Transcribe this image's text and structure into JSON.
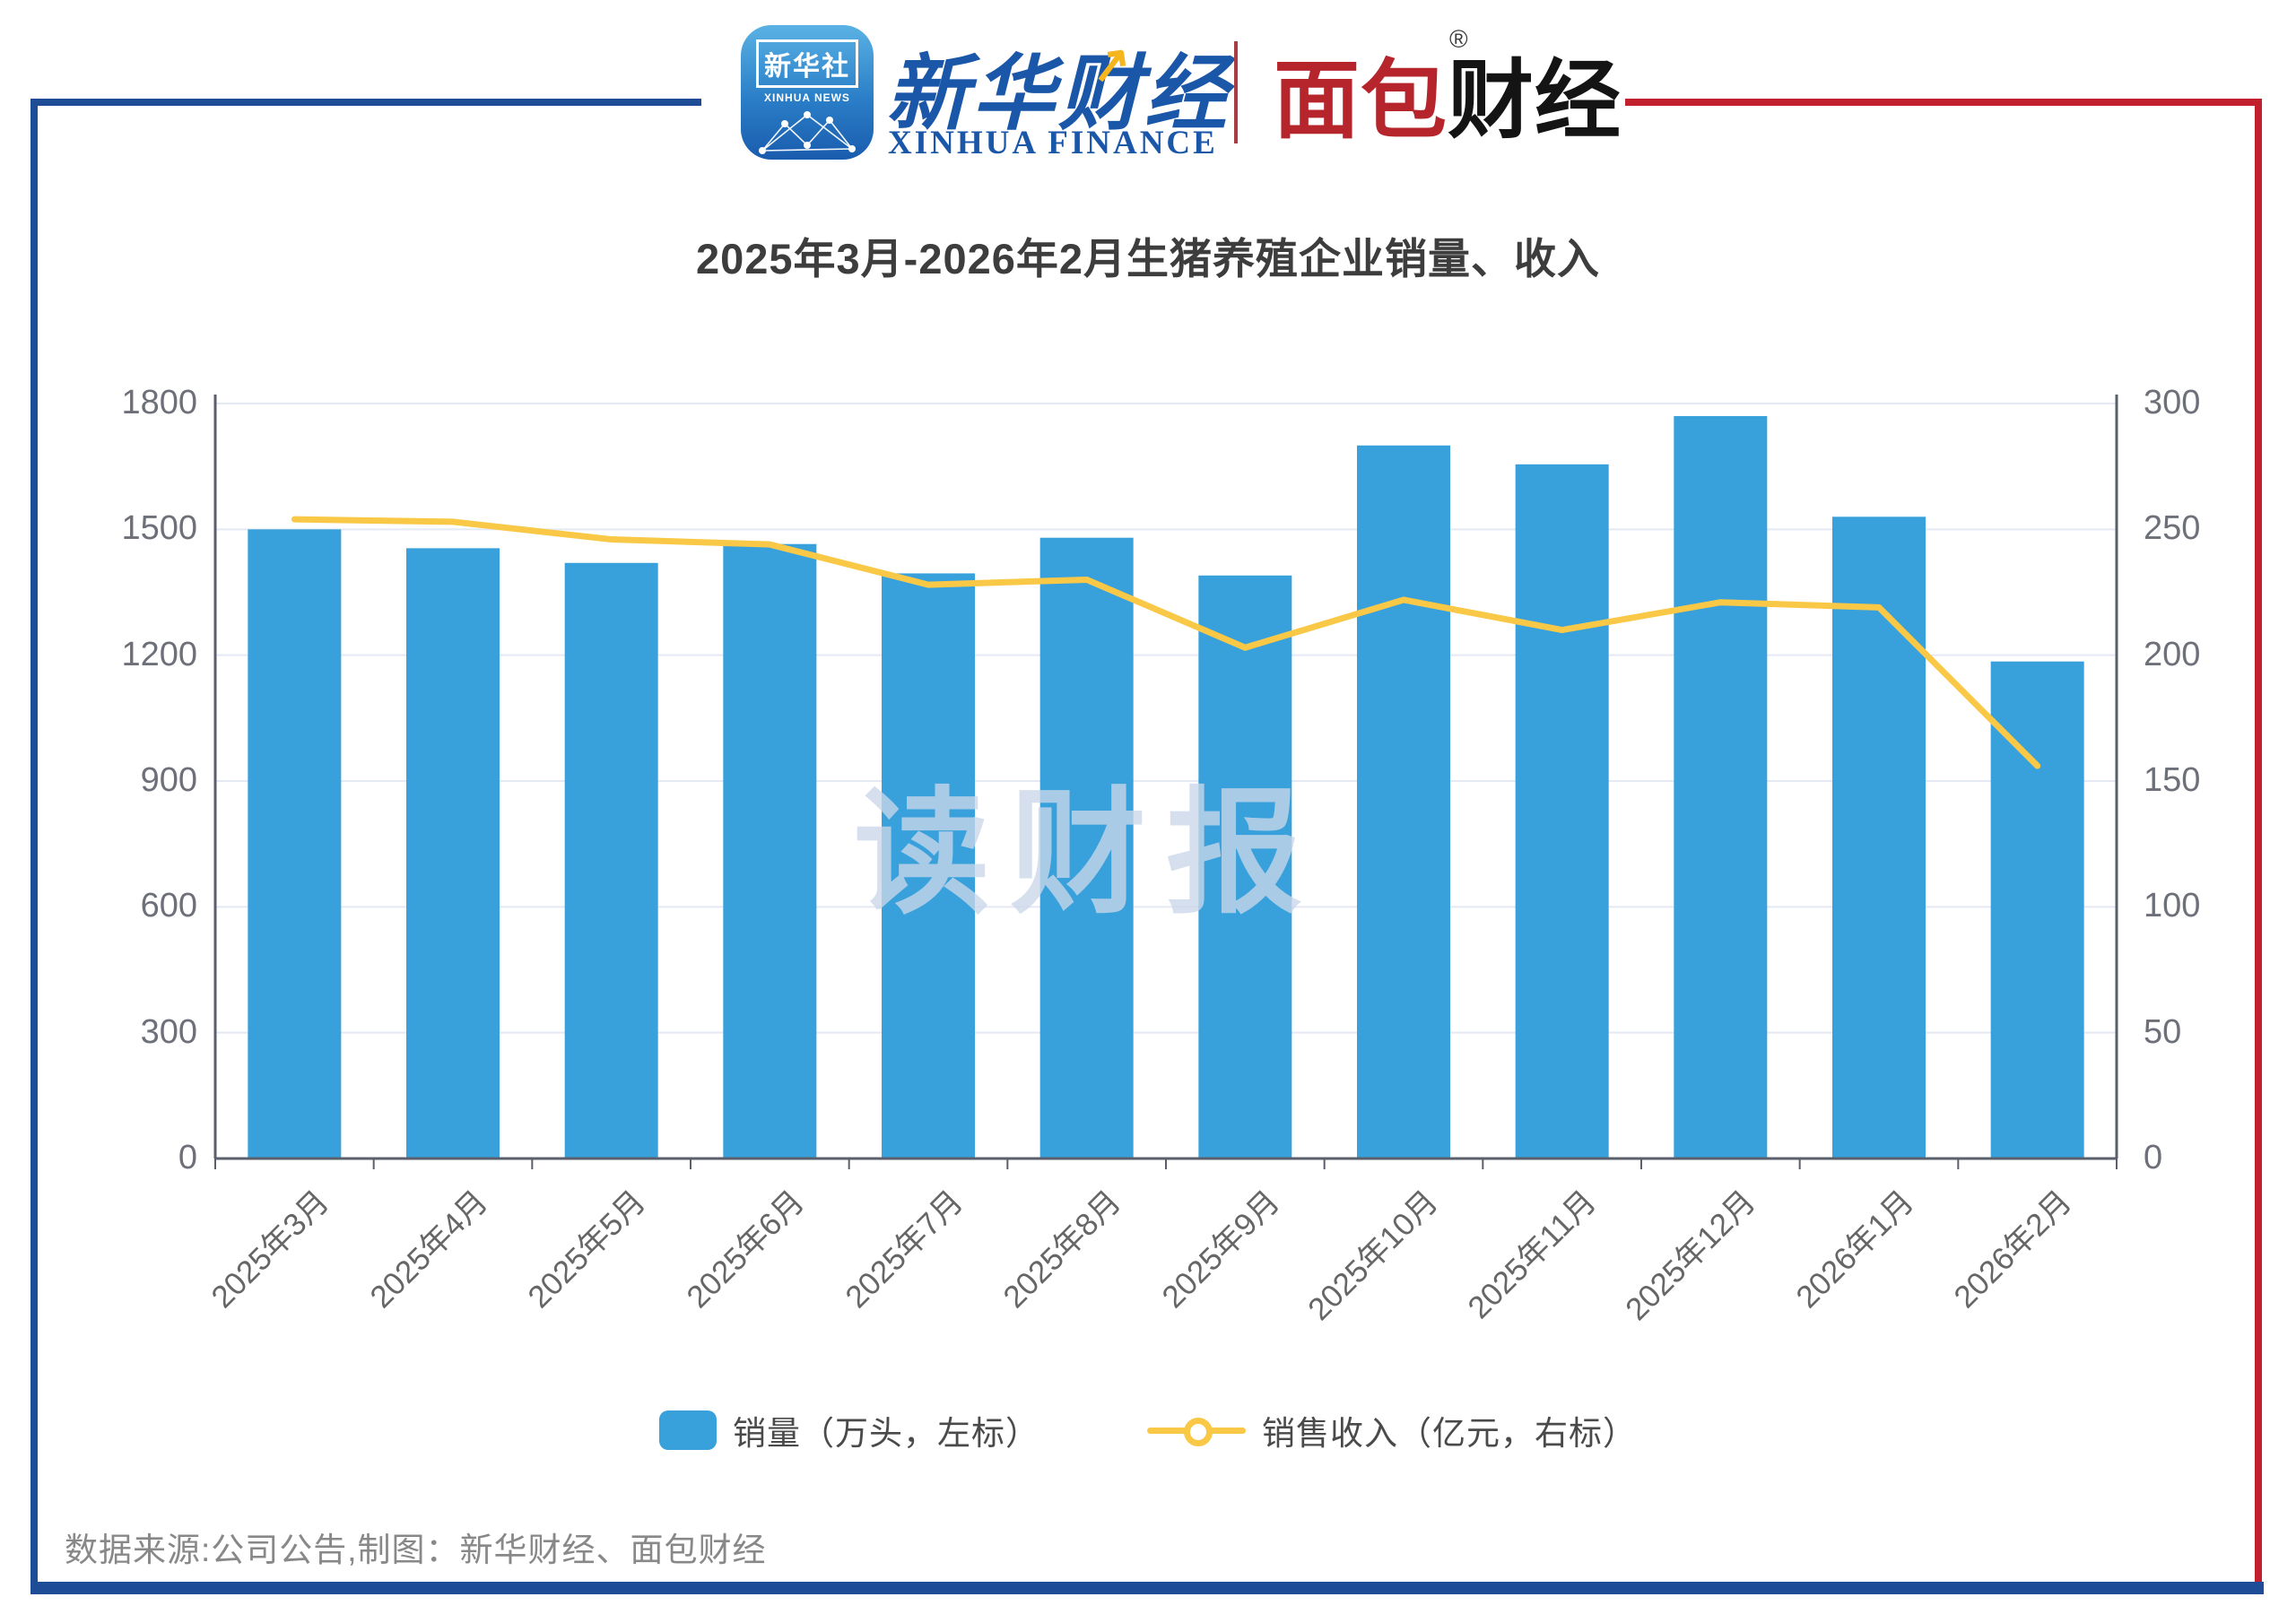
{
  "header": {
    "xinhua_app": {
      "line1": "新华社",
      "line2": "XINHUA NEWS"
    },
    "xinhua_finance": {
      "cn": "新华财经",
      "en": "XINHUA FINANCE"
    },
    "mianbao": {
      "cn_red": "面包",
      "cn_black": "财经",
      "reg": "®"
    }
  },
  "title": "2025年3月-2026年2月生猪养殖企业销量、收入",
  "watermark": "读财报",
  "footer": "数据来源:公司公告,制图：新华财经、面包财经",
  "legend": [
    {
      "label": "销量（万头，左标）",
      "type": "bar"
    },
    {
      "label": "销售收入（亿元，右标）",
      "type": "line"
    }
  ],
  "colors": {
    "bar": "#38a1db",
    "line": "#f9c846",
    "grid": "#e4e9f4",
    "axis": "#5a5f6b",
    "frame_blue": "#1f4c97",
    "frame_red": "#c2202e"
  },
  "chart_data": {
    "type": "bar+line dual-axis",
    "categories": [
      "2025年3月",
      "2025年4月",
      "2025年5月",
      "2025年6月",
      "2025年7月",
      "2025年8月",
      "2025年9月",
      "2025年10月",
      "2025年11月",
      "2025年12月",
      "2026年1月",
      "2026年2月"
    ],
    "series": [
      {
        "name": "销量（万头，左标）",
        "type": "bar",
        "axis": "left",
        "values": [
          1500,
          1455,
          1420,
          1465,
          1395,
          1480,
          1390,
          1700,
          1655,
          1770,
          1530,
          1185
        ]
      },
      {
        "name": "销售收入（亿元，右标）",
        "type": "line",
        "axis": "right",
        "values": [
          254,
          253,
          246,
          244,
          228,
          230,
          203,
          222,
          210,
          221,
          219,
          156
        ]
      }
    ],
    "title": "2025年3月-2026年2月生猪养殖企业销量、收入",
    "xlabel": "",
    "ylabel_left": "销量（万头）",
    "ylabel_right": "销售收入（亿元）",
    "left_axis": {
      "min": 0,
      "max": 1800,
      "ticks": [
        0,
        300,
        600,
        900,
        1200,
        1500,
        1800
      ]
    },
    "right_axis": {
      "min": 0,
      "max": 300,
      "ticks": [
        0,
        50,
        100,
        150,
        200,
        250,
        300
      ]
    },
    "grid": true,
    "legend_position": "bottom"
  }
}
